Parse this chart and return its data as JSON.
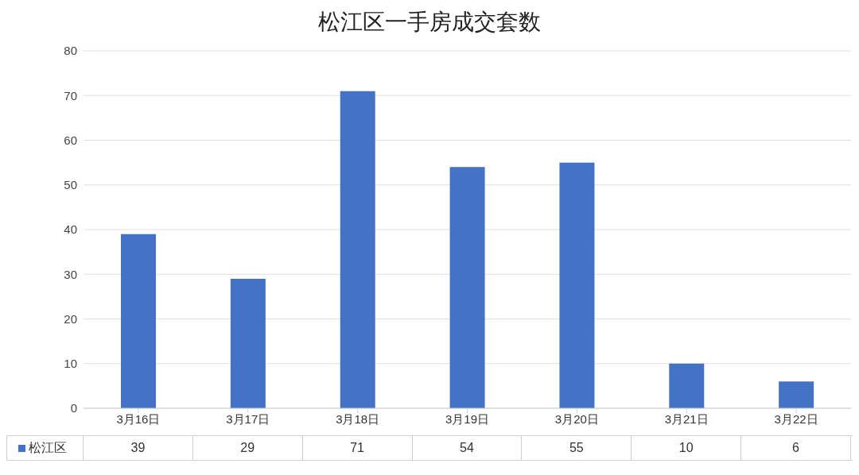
{
  "chart_data": {
    "type": "bar",
    "title": "松江区一手房成交套数",
    "categories": [
      "3月16日",
      "3月17日",
      "3月18日",
      "3月19日",
      "3月20日",
      "3月21日",
      "3月22日"
    ],
    "series": [
      {
        "name": "松江区",
        "color": "#4472c4",
        "values": [
          39,
          29,
          71,
          54,
          55,
          10,
          6
        ]
      }
    ],
    "ylim": [
      0,
      80
    ],
    "yticks": [
      0,
      10,
      20,
      30,
      40,
      50,
      60,
      70,
      80
    ],
    "grid": "y",
    "legend": "bottom left",
    "data_labels": true
  }
}
